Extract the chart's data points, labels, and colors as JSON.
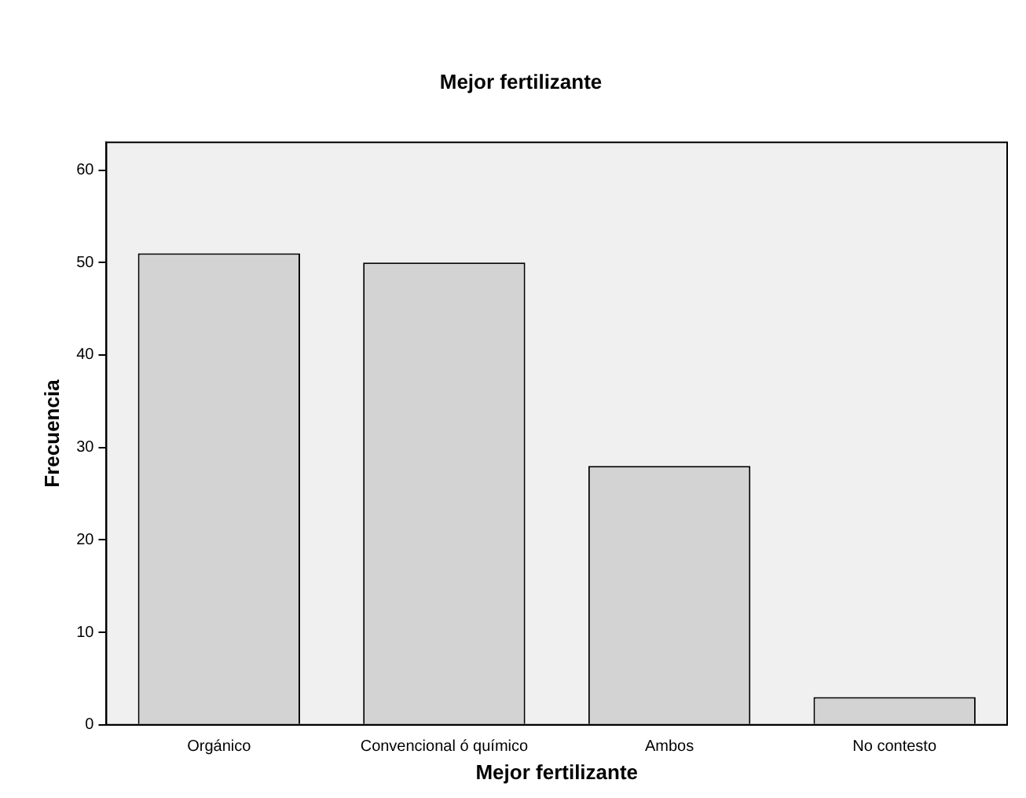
{
  "chart_data": {
    "type": "bar",
    "title": "Mejor fertilizante",
    "xlabel": "Mejor fertilizante",
    "ylabel": "Frecuencia",
    "categories": [
      "Orgánico",
      "Convencional ó químico",
      "Ambos",
      "No contesto"
    ],
    "values": [
      51,
      50,
      28,
      3
    ],
    "color": "#d3d3d3",
    "ylim": [
      0,
      63
    ],
    "yticks": [
      0,
      10,
      20,
      30,
      40,
      50,
      60
    ],
    "grid": false,
    "legend": false
  }
}
